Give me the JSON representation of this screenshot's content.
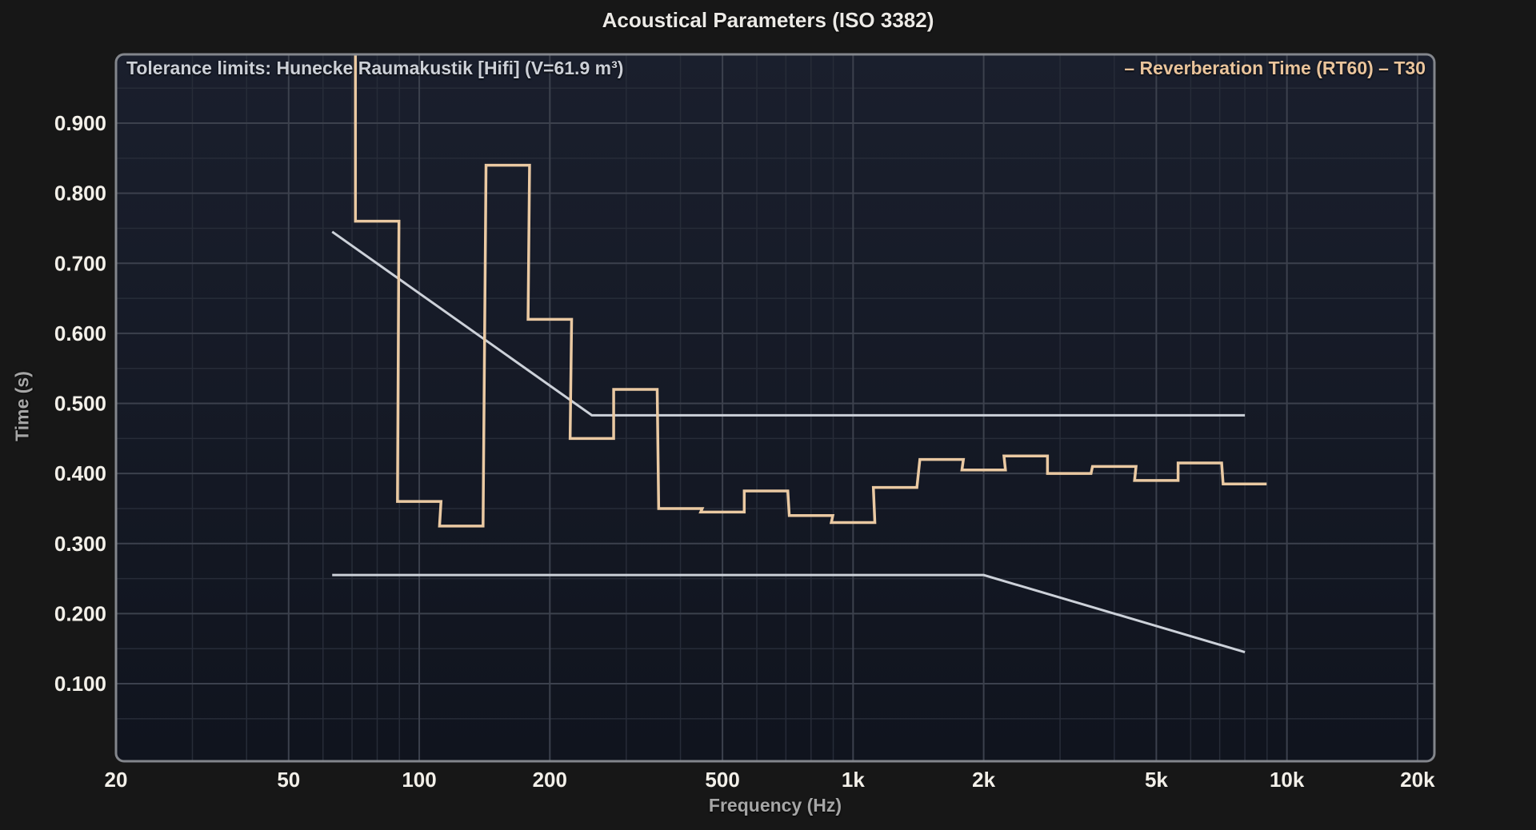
{
  "chart_data": {
    "type": "line",
    "title": "Acoustical Parameters (ISO 3382)",
    "xlabel": "Frequency (Hz)",
    "ylabel": "Time (s)",
    "x_scale": "log",
    "xlim": [
      20,
      22000
    ],
    "ylim": [
      0,
      1.0
    ],
    "grid": "on",
    "annotation": "Tolerance limits: Hunecke Raumakustik [Hifi] (V=61.9 m³)",
    "legend": {
      "label": "– Reverberation Time (RT60) – T30",
      "position": "top-right",
      "color": "#e9c49c"
    },
    "x_ticks": [
      {
        "value": 20,
        "label": "20"
      },
      {
        "value": 50,
        "label": "50"
      },
      {
        "value": 100,
        "label": "100"
      },
      {
        "value": 200,
        "label": "200"
      },
      {
        "value": 500,
        "label": "500"
      },
      {
        "value": 1000,
        "label": "1k"
      },
      {
        "value": 2000,
        "label": "2k"
      },
      {
        "value": 5000,
        "label": "5k"
      },
      {
        "value": 10000,
        "label": "10k"
      },
      {
        "value": 20000,
        "label": "20k"
      }
    ],
    "y_ticks": [
      {
        "value": 0.1,
        "label": "0.100"
      },
      {
        "value": 0.2,
        "label": "0.200"
      },
      {
        "value": 0.3,
        "label": "0.300"
      },
      {
        "value": 0.4,
        "label": "0.400"
      },
      {
        "value": 0.5,
        "label": "0.500"
      },
      {
        "value": 0.6,
        "label": "0.600"
      },
      {
        "value": 0.7,
        "label": "0.700"
      },
      {
        "value": 0.8,
        "label": "0.800"
      },
      {
        "value": 0.9,
        "label": "0.900"
      }
    ],
    "series": [
      {
        "name": "Reverberation Time (RT60) T30",
        "style": "third-octave-steps",
        "color": "#eac9a2",
        "enters_from_top": true,
        "bands": [
          {
            "hz": 80,
            "t30": 0.76
          },
          {
            "hz": 100,
            "t30": 0.36
          },
          {
            "hz": 125,
            "t30": 0.325
          },
          {
            "hz": 160,
            "t30": 0.84
          },
          {
            "hz": 200,
            "t30": 0.62
          },
          {
            "hz": 250,
            "t30": 0.45
          },
          {
            "hz": 315,
            "t30": 0.52
          },
          {
            "hz": 400,
            "t30": 0.35
          },
          {
            "hz": 500,
            "t30": 0.345
          },
          {
            "hz": 630,
            "t30": 0.375
          },
          {
            "hz": 800,
            "t30": 0.34
          },
          {
            "hz": 1000,
            "t30": 0.33
          },
          {
            "hz": 1250,
            "t30": 0.38
          },
          {
            "hz": 1600,
            "t30": 0.42
          },
          {
            "hz": 2000,
            "t30": 0.405
          },
          {
            "hz": 2500,
            "t30": 0.425
          },
          {
            "hz": 3150,
            "t30": 0.4
          },
          {
            "hz": 4000,
            "t30": 0.41
          },
          {
            "hz": 5000,
            "t30": 0.39
          },
          {
            "hz": 6300,
            "t30": 0.415
          },
          {
            "hz": 8000,
            "t30": 0.385
          }
        ]
      },
      {
        "name": "Tolerance upper limit",
        "style": "polyline",
        "color": "#ccd1d9",
        "points": [
          [
            63,
            0.745
          ],
          [
            250,
            0.483
          ],
          [
            8000,
            0.483
          ]
        ]
      },
      {
        "name": "Tolerance lower limit",
        "style": "polyline",
        "color": "#ccd1d9",
        "points": [
          [
            63,
            0.255
          ],
          [
            2000,
            0.255
          ],
          [
            8000,
            0.145
          ]
        ]
      }
    ],
    "colors": {
      "outer_background": "#171717",
      "plot_background_top": "#1a1f2d",
      "plot_background_bottom": "#10141e",
      "grid_minor": "#272c38",
      "grid_major": "#3c414d",
      "frame": "#83868c",
      "tick_labels": "#f3f0e9",
      "title": "#eceae6",
      "axis_labels": "#a6a6a6",
      "annotation_text": "#ccd0d7",
      "curve": "#eac9a2",
      "tolerance_lines": "#ccd1d9"
    }
  }
}
